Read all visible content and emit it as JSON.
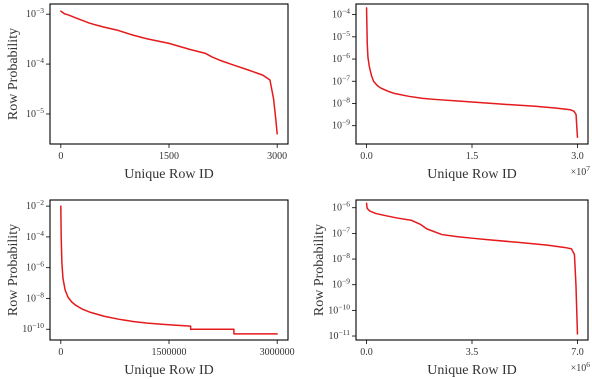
{
  "colors": {
    "line": "#e41a1c",
    "frame": "#000000",
    "text": "#333333"
  },
  "chart_data": [
    {
      "type": "line",
      "title": "",
      "xlabel": "Unique Row ID",
      "ylabel": "Row Probability",
      "y_scale": "log",
      "grid": false,
      "xlim": [
        -150,
        3150
      ],
      "ylim": [
        2.5e-06,
        0.0016
      ],
      "x_ticks": [
        0,
        1500,
        3000
      ],
      "x_tick_labels": [
        "0",
        "1500",
        "3000"
      ],
      "x_multiplier": "",
      "y_ticks": [
        1e-05,
        0.0001,
        0.001
      ],
      "y_tick_bases": [
        "10",
        "10",
        "10"
      ],
      "y_tick_exps": [
        "−5",
        "−4",
        "−3"
      ],
      "series": [
        {
          "x": [
            0,
            50,
            100,
            200,
            300,
            400,
            500,
            600,
            800,
            1000,
            1200,
            1500,
            1800,
            2000,
            2100,
            2200,
            2400,
            2600,
            2800,
            2900,
            2950,
            2980,
            3000
          ],
          "y": [
            0.00115,
            0.00102,
            0.00097,
            0.00085,
            0.00075,
            0.00066,
            0.0006,
            0.00055,
            0.00047,
            0.00038,
            0.00032,
            0.00026,
            0.000195,
            0.000165,
            0.000138,
            0.00012,
            9.5e-05,
            7.6e-05,
            6e-05,
            4.8e-05,
            2e-05,
            8e-06,
            4e-06
          ]
        }
      ]
    },
    {
      "type": "line",
      "title": "",
      "xlabel": "Unique Row ID",
      "ylabel": "",
      "y_scale": "log",
      "grid": false,
      "xlim": [
        -0.15,
        3.15
      ],
      "ylim": [
        1.5e-10,
        0.0003
      ],
      "x_ticks": [
        0,
        1.5,
        3.0
      ],
      "x_tick_labels": [
        "0.0",
        "1.5",
        "3.0"
      ],
      "x_multiplier": "×10",
      "x_multiplier_exp": "7",
      "y_ticks": [
        1e-09,
        1e-08,
        1e-07,
        1e-06,
        1e-05,
        0.0001
      ],
      "y_tick_bases": [
        "10",
        "10",
        "10",
        "10",
        "10",
        "10"
      ],
      "y_tick_exps": [
        "−9",
        "−8",
        "−7",
        "−6",
        "−5",
        "−4"
      ],
      "series": [
        {
          "x": [
            0,
            0.01,
            0.02,
            0.04,
            0.07,
            0.1,
            0.15,
            0.2,
            0.3,
            0.4,
            0.6,
            0.8,
            1.0,
            1.3,
            1.6,
            2.0,
            2.4,
            2.7,
            2.9,
            2.95,
            2.98,
            3.0
          ],
          "y": [
            0.0002,
            5e-06,
            1.2e-06,
            4.5e-07,
            1.8e-07,
            1e-07,
            6.5e-08,
            5e-08,
            3.6e-08,
            2.8e-08,
            2.1e-08,
            1.7e-08,
            1.5e-08,
            1.3e-08,
            1.1e-08,
            9e-09,
            7.5e-09,
            6.2e-09,
            5.2e-09,
            4.5e-09,
            3.2e-09,
            3e-10
          ]
        }
      ]
    },
    {
      "type": "line",
      "title": "",
      "xlabel": "Unique Row ID",
      "ylabel": "Row Probability",
      "y_scale": "log",
      "grid": false,
      "xlim": [
        -150000,
        3150000
      ],
      "ylim": [
        2e-11,
        0.025
      ],
      "x_ticks": [
        0,
        1500000,
        3000000
      ],
      "x_tick_labels": [
        "0",
        "1500000",
        "3000000"
      ],
      "x_multiplier": "",
      "y_ticks": [
        1e-10,
        1e-08,
        1e-06,
        0.0001,
        0.01
      ],
      "y_tick_bases": [
        "10",
        "10",
        "10",
        "10",
        "10"
      ],
      "y_tick_exps": [
        "−10",
        "−8",
        "−6",
        "−4",
        "−2"
      ],
      "series": [
        {
          "x": [
            0,
            5000,
            15000,
            30000,
            60000,
            100000,
            150000,
            200000,
            300000,
            400000,
            600000,
            800000,
            1000000,
            1200000,
            1400000,
            1600000,
            1800000,
            1800001,
            2400000,
            2400001,
            3000000
          ],
          "y": [
            0.01,
            0.0001,
            2e-06,
            2e-07,
            3.5e-08,
            1.2e-08,
            6e-09,
            3.8e-09,
            2e-09,
            1.3e-09,
            7e-10,
            4.5e-10,
            3.2e-10,
            2.5e-10,
            2.1e-10,
            1.8e-10,
            1.6e-10,
            1e-10,
            1e-10,
            5e-11,
            5e-11
          ]
        }
      ]
    },
    {
      "type": "line",
      "title": "",
      "xlabel": "Unique Row ID",
      "ylabel": "Row Probability",
      "y_scale": "log",
      "grid": false,
      "xlim": [
        -0.35,
        7.35
      ],
      "ylim": [
        7e-12,
        2e-06
      ],
      "x_ticks": [
        0,
        3.5,
        7.0
      ],
      "x_tick_labels": [
        "0.0",
        "3.5",
        "7.0"
      ],
      "x_multiplier": "×10",
      "x_multiplier_exp": "6",
      "y_ticks": [
        1e-11,
        1e-10,
        1e-09,
        1e-08,
        1e-07,
        1e-06
      ],
      "y_tick_bases": [
        "10",
        "10",
        "10",
        "10",
        "10",
        "10"
      ],
      "y_tick_exps": [
        "−11",
        "−10",
        "−9",
        "−8",
        "−7",
        "−6"
      ],
      "series": [
        {
          "x": [
            0,
            0.02,
            0.1,
            0.3,
            0.6,
            1.0,
            1.5,
            1.8,
            2.0,
            2.5,
            3.0,
            3.5,
            4.0,
            5.0,
            6.0,
            6.6,
            6.8,
            6.9,
            6.95,
            7.0
          ],
          "y": [
            1.5e-06,
            9.5e-07,
            7.5e-07,
            6e-07,
            5e-07,
            4e-07,
            3.2e-07,
            2.2e-07,
            1.5e-07,
            9e-08,
            7.5e-08,
            6.5e-08,
            5.7e-08,
            4.5e-08,
            3.5e-08,
            2.8e-08,
            2.5e-08,
            1.5e-08,
            1e-09,
            1.2e-11
          ]
        }
      ]
    }
  ]
}
